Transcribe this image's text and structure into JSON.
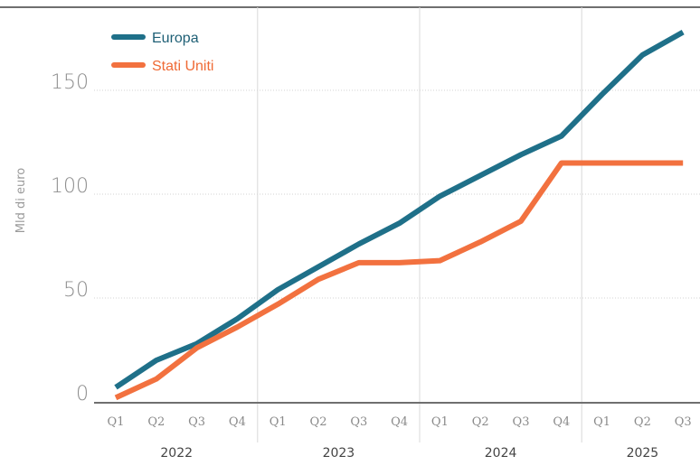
{
  "chart_data": {
    "type": "line",
    "ylabel": "Mld di euro",
    "ylim": [
      0,
      190
    ],
    "yticks": [
      0,
      50,
      100,
      150
    ],
    "grid": true,
    "legend_position": "top-left",
    "categories": [
      "Q1",
      "Q2",
      "Q3",
      "Q4",
      "Q1",
      "Q2",
      "Q3",
      "Q4",
      "Q1",
      "Q2",
      "Q3",
      "Q4",
      "Q1",
      "Q2",
      "Q3"
    ],
    "years": [
      {
        "label": "2022",
        "quarters": 4
      },
      {
        "label": "2023",
        "quarters": 4
      },
      {
        "label": "2024",
        "quarters": 4
      },
      {
        "label": "2025",
        "quarters": 3
      }
    ],
    "series": [
      {
        "name": "Europa",
        "color": "#1f7089",
        "values": [
          7,
          20,
          28,
          40,
          54,
          65,
          76,
          86,
          99,
          109,
          119,
          128,
          148,
          167,
          178
        ]
      },
      {
        "name": "Stati Uniti",
        "color": "#f2713f",
        "values": [
          2,
          11,
          26,
          36,
          47,
          59,
          67,
          67,
          68,
          77,
          87,
          115,
          115,
          115,
          115
        ]
      }
    ]
  }
}
